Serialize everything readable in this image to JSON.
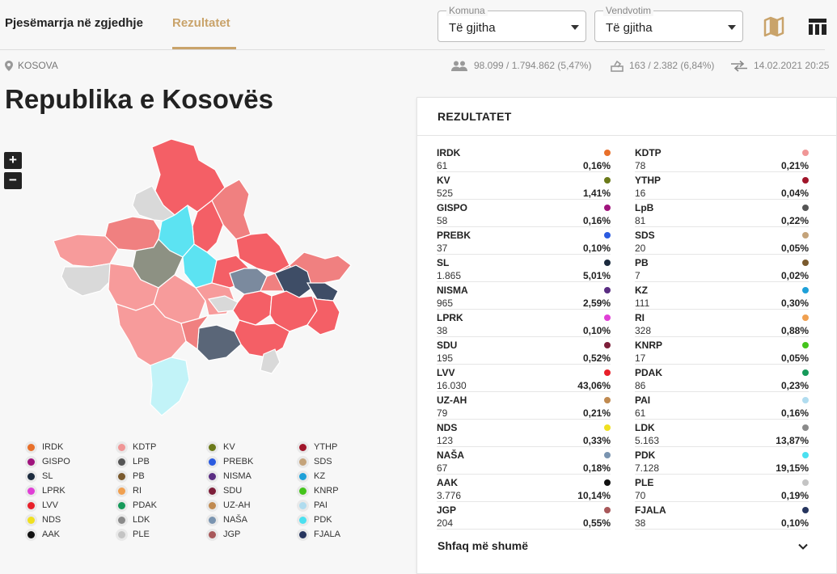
{
  "nav": {
    "tab1": "Pjesëmarrja në zgjedhje",
    "tab2": "Rezultatet"
  },
  "filters": {
    "komuna_label": "Komuna",
    "komuna_value": "Të gjitha",
    "vendvotim_label": "Vendvotim",
    "vendvotim_value": "Të gjitha"
  },
  "location": "KOSOVA",
  "stats": {
    "voters": "98.099 / 1.794.862 (5,47%)",
    "stations": "163 / 2.382 (6,84%)",
    "updated": "14.02.2021 20:25"
  },
  "page_title": "Republika e Kosovës",
  "zoom": {
    "in": "+",
    "out": "−"
  },
  "results": {
    "title": "REZULTATET",
    "show_more": "Shfaq më shumë",
    "parties": [
      {
        "name": "IRDK",
        "votes": "61",
        "pct": "0,16%",
        "color": "#e8702a"
      },
      {
        "name": "KDTP",
        "votes": "78",
        "pct": "0,21%",
        "color": "#f09696"
      },
      {
        "name": "KV",
        "votes": "525",
        "pct": "1,41%",
        "color": "#6b7a1a"
      },
      {
        "name": "YTHP",
        "votes": "16",
        "pct": "0,04%",
        "color": "#a0152a"
      },
      {
        "name": "GISPO",
        "votes": "58",
        "pct": "0,16%",
        "color": "#a0147d"
      },
      {
        "name": "LpB",
        "votes": "81",
        "pct": "0,22%",
        "color": "#555555"
      },
      {
        "name": "PREBK",
        "votes": "37",
        "pct": "0,10%",
        "color": "#2b5be0"
      },
      {
        "name": "SDS",
        "votes": "20",
        "pct": "0,05%",
        "color": "#c4a37a"
      },
      {
        "name": "SL",
        "votes": "1.865",
        "pct": "5,01%",
        "color": "#1c2b3e"
      },
      {
        "name": "PB",
        "votes": "7",
        "pct": "0,02%",
        "color": "#7a5a2e"
      },
      {
        "name": "NISMA",
        "votes": "965",
        "pct": "2,59%",
        "color": "#5a2d82"
      },
      {
        "name": "KZ",
        "votes": "111",
        "pct": "0,30%",
        "color": "#1ea0d8"
      },
      {
        "name": "LPRK",
        "votes": "38",
        "pct": "0,10%",
        "color": "#e03fd6"
      },
      {
        "name": "RI",
        "votes": "328",
        "pct": "0,88%",
        "color": "#f0a050"
      },
      {
        "name": "SDU",
        "votes": "195",
        "pct": "0,52%",
        "color": "#7d1f3a"
      },
      {
        "name": "KNRP",
        "votes": "17",
        "pct": "0,05%",
        "color": "#44c41c"
      },
      {
        "name": "LVV",
        "votes": "16.030",
        "pct": "43,06%",
        "color": "#e8202a"
      },
      {
        "name": "PDAK",
        "votes": "86",
        "pct": "0,23%",
        "color": "#169a5a"
      },
      {
        "name": "UZ-AH",
        "votes": "79",
        "pct": "0,21%",
        "color": "#c08a50"
      },
      {
        "name": "PAI",
        "votes": "61",
        "pct": "0,16%",
        "color": "#b0dcef"
      },
      {
        "name": "NDS",
        "votes": "123",
        "pct": "0,33%",
        "color": "#f0e020"
      },
      {
        "name": "LDK",
        "votes": "5.163",
        "pct": "13,87%",
        "color": "#8a8a8a"
      },
      {
        "name": "NAŠA",
        "votes": "67",
        "pct": "0,18%",
        "color": "#7a94b0"
      },
      {
        "name": "PDK",
        "votes": "7.128",
        "pct": "19,15%",
        "color": "#4ae0f0"
      },
      {
        "name": "AAK",
        "votes": "3.776",
        "pct": "10,14%",
        "color": "#111111"
      },
      {
        "name": "PLE",
        "votes": "70",
        "pct": "0,19%",
        "color": "#c4c4c4"
      },
      {
        "name": "JGP",
        "votes": "204",
        "pct": "0,55%",
        "color": "#a8585a"
      },
      {
        "name": "FJALA",
        "votes": "38",
        "pct": "0,10%",
        "color": "#26355e"
      }
    ]
  },
  "legend": [
    {
      "name": "IRDK",
      "color": "#e8702a"
    },
    {
      "name": "KDTP",
      "color": "#f09696"
    },
    {
      "name": "KV",
      "color": "#6b7a1a"
    },
    {
      "name": "YTHP",
      "color": "#a0152a"
    },
    {
      "name": "GISPO",
      "color": "#a0147d"
    },
    {
      "name": "LPB",
      "color": "#555555"
    },
    {
      "name": "PREBK",
      "color": "#2b5be0"
    },
    {
      "name": "SDS",
      "color": "#c4a37a"
    },
    {
      "name": "SL",
      "color": "#1c2b3e"
    },
    {
      "name": "PB",
      "color": "#7a5a2e"
    },
    {
      "name": "NISMA",
      "color": "#5a2d82"
    },
    {
      "name": "KZ",
      "color": "#1ea0d8"
    },
    {
      "name": "LPRK",
      "color": "#e03fd6"
    },
    {
      "name": "RI",
      "color": "#f0a050"
    },
    {
      "name": "SDU",
      "color": "#7d1f3a"
    },
    {
      "name": "KNRP",
      "color": "#44c41c"
    },
    {
      "name": "LVV",
      "color": "#e8202a"
    },
    {
      "name": "PDAK",
      "color": "#169a5a"
    },
    {
      "name": "UZ-AH",
      "color": "#c08a50"
    },
    {
      "name": "PAI",
      "color": "#b0dcef"
    },
    {
      "name": "NDS",
      "color": "#f0e020"
    },
    {
      "name": "LDK",
      "color": "#8a8a8a"
    },
    {
      "name": "NAŠA",
      "color": "#7a94b0"
    },
    {
      "name": "PDK",
      "color": "#4ae0f0"
    },
    {
      "name": "AAK",
      "color": "#111111"
    },
    {
      "name": "PLE",
      "color": "#c4c4c4"
    },
    {
      "name": "JGP",
      "color": "#a8585a"
    },
    {
      "name": "FJALA",
      "color": "#26355e"
    }
  ]
}
